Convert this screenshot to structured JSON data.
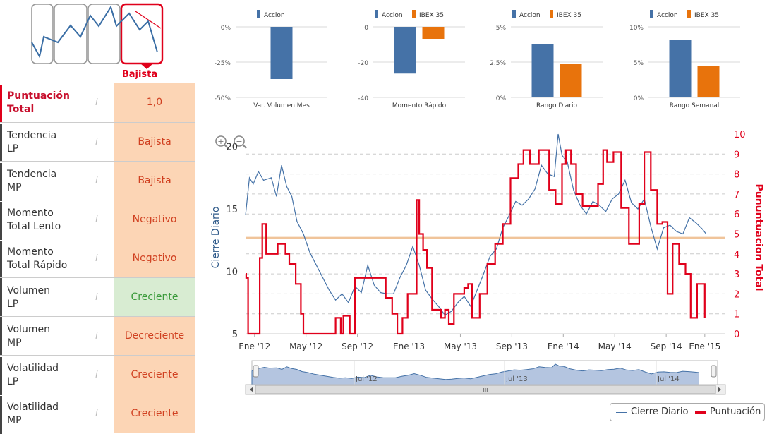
{
  "badge": {
    "label": "Bajista"
  },
  "scores": {
    "info_icon": "i",
    "rows": [
      {
        "label_1": "Puntuación",
        "label_2": "Total",
        "value": "1,0"
      },
      {
        "label_1": "Tendencia",
        "label_2": "LP",
        "value": "Bajista"
      },
      {
        "label_1": "Tendencia",
        "label_2": "MP",
        "value": "Bajista"
      },
      {
        "label_1": "Momento",
        "label_2": "Total Lento",
        "value": "Negativo"
      },
      {
        "label_1": "Momento",
        "label_2": "Total Rápido",
        "value": "Negativo"
      },
      {
        "label_1": "Volumen",
        "label_2": "LP",
        "value": "Creciente"
      },
      {
        "label_1": "Volumen",
        "label_2": "MP",
        "value": "Decreciente"
      },
      {
        "label_1": "Volatilidad",
        "label_2": "LP",
        "value": "Creciente"
      },
      {
        "label_1": "Volatilidad",
        "label_2": "MP",
        "value": "Creciente"
      }
    ]
  },
  "colors": {
    "accion": "#4572a7",
    "ibex": "#e8730c",
    "puntuacion": "#e0001b",
    "peach": "#fcd5b5",
    "green_bg": "#d8ecd2",
    "green_text": "#3a9a3a",
    "red_text": "#d04020",
    "threshold": "#f0c49a"
  },
  "chart_data": [
    {
      "type": "bar",
      "title": "Var. Volumen Mes",
      "legend": [
        "Accion"
      ],
      "series": [
        {
          "name": "Accion",
          "values": [
            -37
          ]
        }
      ],
      "ylim": [
        -50,
        0
      ],
      "yticks": [
        0,
        -25,
        -50
      ],
      "yticklabels": [
        "0%",
        "-25%",
        "-50%"
      ]
    },
    {
      "type": "bar",
      "title": "Momento Rápido",
      "legend": [
        "Accion",
        "IBEX 35"
      ],
      "series": [
        {
          "name": "Accion",
          "values": [
            -26.5
          ]
        },
        {
          "name": "IBEX 35",
          "values": [
            -6.8
          ]
        }
      ],
      "ylim": [
        -40,
        0
      ],
      "yticks": [
        0,
        -20,
        -40
      ],
      "yticklabels": [
        "0",
        "-20",
        "-40"
      ]
    },
    {
      "type": "bar",
      "title": "Rango Diario",
      "legend": [
        "Accion",
        "IBEX 35"
      ],
      "series": [
        {
          "name": "Accion",
          "values": [
            3.8
          ]
        },
        {
          "name": "IBEX 35",
          "values": [
            2.4
          ]
        }
      ],
      "ylim": [
        0,
        5
      ],
      "yticks": [
        5,
        2.5,
        0
      ],
      "yticklabels": [
        "5%",
        "2.5%",
        "0%"
      ]
    },
    {
      "type": "bar",
      "title": "Rango Semanal",
      "legend": [
        "Accion",
        "IBEX 35"
      ],
      "series": [
        {
          "name": "Accion",
          "values": [
            8.1
          ]
        },
        {
          "name": "IBEX 35",
          "values": [
            4.5
          ]
        }
      ],
      "ylim": [
        0,
        10
      ],
      "yticks": [
        10,
        5,
        0
      ],
      "yticklabels": [
        "10%",
        "5%",
        "0%"
      ]
    },
    {
      "type": "line",
      "title": "",
      "ylabel": "Cierre Diario",
      "y2label": "Pununtuacion Total",
      "ylim": [
        5,
        21
      ],
      "yticks": [
        5,
        10,
        15,
        20
      ],
      "y2lim": [
        0,
        10
      ],
      "y2ticks": [
        0,
        1,
        2,
        3,
        4,
        5,
        6,
        7,
        8,
        9,
        10
      ],
      "xlim": [
        0,
        37.3
      ],
      "xticks": [
        0.7,
        4.7,
        8.7,
        12.7,
        16.7,
        20.7,
        24.7,
        28.7,
        32.7,
        35.7
      ],
      "xticklabels": [
        "Ene '12",
        "May '12",
        "Sep '12",
        "Ene '13",
        "May '13",
        "Sep '13",
        "Ene '14",
        "May '14",
        "Sep '14",
        "Ene '15"
      ],
      "threshold": 4.8,
      "series": [
        {
          "name": "Cierre Diario",
          "x": [
            0,
            0.3,
            0.6,
            1,
            1.4,
            2,
            2.4,
            2.8,
            3.2,
            3.6,
            4,
            4.5,
            5,
            5.5,
            6,
            6.5,
            7,
            7.5,
            8,
            8.5,
            9,
            9.5,
            10,
            10.5,
            11,
            11.5,
            12,
            12.5,
            13,
            13.5,
            14,
            14.5,
            15,
            15.5,
            16,
            16.5,
            17,
            17.5,
            18,
            18.5,
            19,
            19.5,
            20,
            20.5,
            21,
            21.5,
            22,
            22.5,
            23,
            23.5,
            24,
            24.3,
            24.6,
            25,
            25.5,
            26,
            26.5,
            27,
            27.5,
            28,
            28.5,
            29,
            29.5,
            30,
            30.5,
            31,
            31.5,
            32,
            32.5,
            33,
            33.5,
            34,
            34.5,
            35,
            35.5,
            35.8
          ],
          "values": [
            14.5,
            17.5,
            17,
            18,
            17.3,
            17.5,
            16,
            18.5,
            16.8,
            16,
            14,
            13,
            11.5,
            10.5,
            9.5,
            8.5,
            7.7,
            8.2,
            7.5,
            8.8,
            8.3,
            10.5,
            8.9,
            8.3,
            8.2,
            8.2,
            9.5,
            10.5,
            12,
            10.5,
            8.5,
            7.8,
            7.2,
            6.5,
            6.8,
            7.5,
            8,
            7.2,
            8.5,
            9.8,
            11.2,
            11.8,
            13.5,
            14.5,
            15.6,
            15.3,
            15.8,
            16.6,
            18.5,
            17.8,
            17.6,
            21,
            19.3,
            18.8,
            16.5,
            15.3,
            14.6,
            15.6,
            15.3,
            14.8,
            15.8,
            16.2,
            17.3,
            15.5,
            15,
            15.8,
            13.6,
            11.8,
            13.5,
            13.7,
            13.2,
            13,
            14.3,
            13.9,
            13.4,
            13
          ]
        },
        {
          "name": "Puntuación",
          "x": [
            0,
            0.05,
            0.2,
            0.4,
            0.5,
            1.1,
            1.3,
            1.6,
            2.2,
            2.5,
            3.1,
            3.4,
            3.9,
            4.3,
            4.5,
            7,
            7.4,
            7.6,
            8.1,
            8.5,
            9.2,
            9.9,
            10.9,
            11.4,
            11.8,
            12.2,
            12.6,
            13.3,
            13.5,
            13.8,
            14.1,
            14.5,
            15.2,
            15.5,
            15.8,
            16.2,
            17,
            17.3,
            17.6,
            18.2,
            18.8,
            19.4,
            20,
            20.6,
            21.2,
            21.6,
            22.1,
            22.8,
            23.6,
            24.1,
            24.6,
            24.9,
            25.3,
            25.7,
            26.2,
            26.9,
            27.4,
            27.8,
            28.1,
            28.6,
            29.2,
            29.8,
            30.6,
            31,
            31.5,
            32,
            32.4,
            32.8,
            33.2,
            33.7,
            34.2,
            34.6,
            35.1,
            35.4,
            35.7
          ],
          "values": [
            3,
            2.8,
            0,
            0,
            0,
            3.8,
            5.5,
            4,
            4,
            4.5,
            4,
            3.5,
            2.5,
            1,
            0,
            0.8,
            0,
            0.9,
            0,
            2.8,
            2.8,
            2.8,
            1.8,
            1,
            0,
            0.8,
            2,
            6.7,
            5,
            4.2,
            3.3,
            1.2,
            0.8,
            1.2,
            0.5,
            2,
            2.3,
            2.5,
            0.8,
            2,
            3.5,
            4.5,
            5.5,
            7.8,
            8.5,
            9.2,
            8.5,
            9.2,
            7.2,
            6.5,
            8.5,
            9.2,
            8.5,
            7,
            6.4,
            6.4,
            7.5,
            9.2,
            8.6,
            9.1,
            6.3,
            4.5,
            6.5,
            9.1,
            7.2,
            5.5,
            5.6,
            2,
            4.5,
            3.5,
            3,
            0.8,
            2.5,
            2.5,
            0.8
          ]
        }
      ]
    }
  ],
  "main_chart": {
    "zoom_in": "+",
    "zoom_out": "−",
    "navigator_labels": [
      "Jul '12",
      "Jul '13",
      "Jul '14"
    ],
    "scroll_mid": "III",
    "legend": {
      "cierre": "Cierre Diario",
      "puntuacion": "Puntuación"
    }
  }
}
